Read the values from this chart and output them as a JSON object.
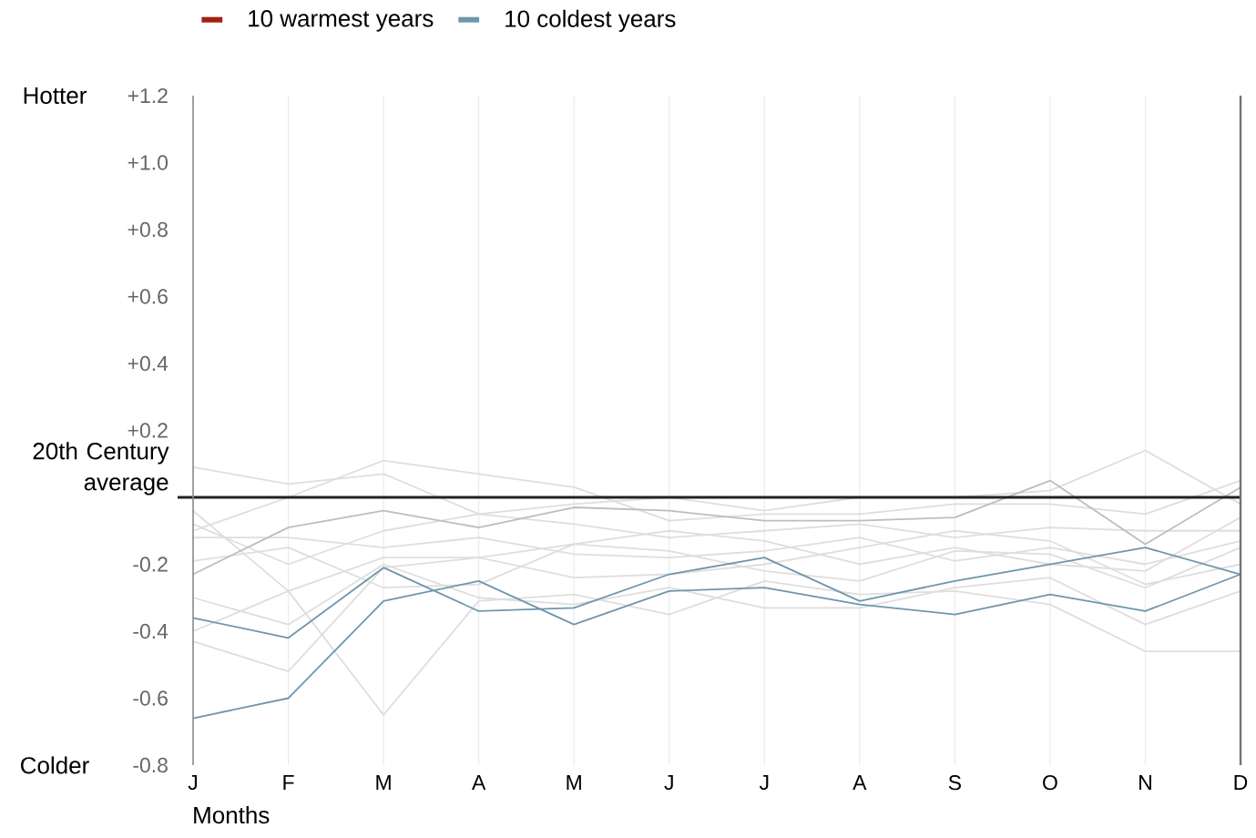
{
  "chart_data": {
    "type": "line",
    "xlabel": "Months",
    "categories": [
      "J",
      "F",
      "M",
      "A",
      "M",
      "J",
      "J",
      "A",
      "S",
      "O",
      "N",
      "D"
    ],
    "ylim": [
      -0.8,
      1.2
    ],
    "yticks": [
      {
        "value": -0.8,
        "label": "-0.8"
      },
      {
        "value": -0.6,
        "label": "-0.6"
      },
      {
        "value": -0.4,
        "label": "-0.4"
      },
      {
        "value": -0.2,
        "label": "-0.2"
      },
      {
        "value": 0.2,
        "label": "+0.2"
      },
      {
        "value": 0.4,
        "label": "+0.4"
      },
      {
        "value": 0.6,
        "label": "+0.6"
      },
      {
        "value": 0.8,
        "label": "+0.8"
      },
      {
        "value": 1.0,
        "label": "+1.0"
      },
      {
        "value": 1.2,
        "label": "+1.2"
      }
    ],
    "grid": "x",
    "legend": "top",
    "marker": "none",
    "line_style": "solid",
    "ref_lines": [
      {
        "axis": "y",
        "value": 0,
        "label": "20th Century average",
        "color": "#222222"
      }
    ],
    "annotations": [
      "Hotter",
      "Colder"
    ],
    "series": [
      {
        "color": "#dedede",
        "values": [
          0.09,
          0.04,
          0.07,
          -0.05,
          -0.02,
          0.0,
          -0.04,
          0.0,
          0.0,
          0.02,
          0.14,
          -0.02
        ]
      },
      {
        "color": "#dedede",
        "values": [
          -0.1,
          0.0,
          0.11,
          0.07,
          0.03,
          -0.07,
          -0.05,
          -0.05,
          -0.02,
          -0.02,
          -0.05,
          0.05
        ]
      },
      {
        "color": "#dedede",
        "values": [
          -0.43,
          -0.52,
          -0.21,
          -0.18,
          -0.14,
          -0.16,
          -0.22,
          -0.25,
          -0.16,
          -0.17,
          -0.27,
          -0.15
        ]
      },
      {
        "color": "#dedede",
        "values": [
          -0.4,
          -0.28,
          -0.65,
          -0.31,
          -0.29,
          -0.35,
          -0.25,
          -0.29,
          -0.28,
          -0.32,
          -0.46,
          -0.46
        ]
      },
      {
        "color": "#dedede",
        "values": [
          -0.04,
          -0.28,
          -0.18,
          -0.18,
          -0.24,
          -0.23,
          -0.2,
          -0.15,
          -0.1,
          -0.13,
          -0.26,
          -0.2
        ]
      },
      {
        "color": "#dedede",
        "values": [
          -0.19,
          -0.15,
          -0.27,
          -0.26,
          -0.14,
          -0.1,
          -0.13,
          -0.2,
          -0.15,
          -0.2,
          -0.22,
          -0.06
        ]
      },
      {
        "color": "#dedede",
        "values": [
          -0.3,
          -0.38,
          -0.2,
          -0.3,
          -0.32,
          -0.27,
          -0.33,
          -0.33,
          -0.27,
          -0.24,
          -0.38,
          -0.28
        ]
      },
      {
        "color": "#dedede",
        "values": [
          -0.12,
          -0.12,
          -0.15,
          -0.12,
          -0.17,
          -0.18,
          -0.16,
          -0.12,
          -0.19,
          -0.15,
          -0.2,
          -0.13
        ]
      },
      {
        "color": "#dedede",
        "values": [
          -0.08,
          -0.2,
          -0.1,
          -0.05,
          -0.08,
          -0.12,
          -0.1,
          -0.08,
          -0.12,
          -0.09,
          -0.1,
          -0.1
        ]
      },
      {
        "color": "#bdbdbd",
        "values": [
          -0.23,
          -0.09,
          -0.04,
          -0.09,
          -0.03,
          -0.04,
          -0.07,
          -0.07,
          -0.06,
          0.05,
          -0.14,
          0.03
        ]
      },
      {
        "name": "10 warmest years",
        "color": "#a0210f",
        "values": [
          null,
          null,
          null,
          null,
          null,
          null,
          null,
          null,
          null,
          null,
          null,
          null
        ]
      },
      {
        "name": "10 coldest years",
        "color": "#6f96ad",
        "values": [
          -0.36,
          -0.42,
          -0.21,
          -0.34,
          -0.33,
          -0.23,
          -0.18,
          -0.31,
          -0.25,
          -0.2,
          -0.15,
          -0.23
        ]
      },
      {
        "color": "#6f96ad",
        "values": [
          -0.66,
          -0.6,
          -0.31,
          -0.25,
          -0.38,
          -0.28,
          -0.27,
          -0.32,
          -0.35,
          -0.29,
          -0.34,
          -0.23
        ]
      }
    ]
  }
}
